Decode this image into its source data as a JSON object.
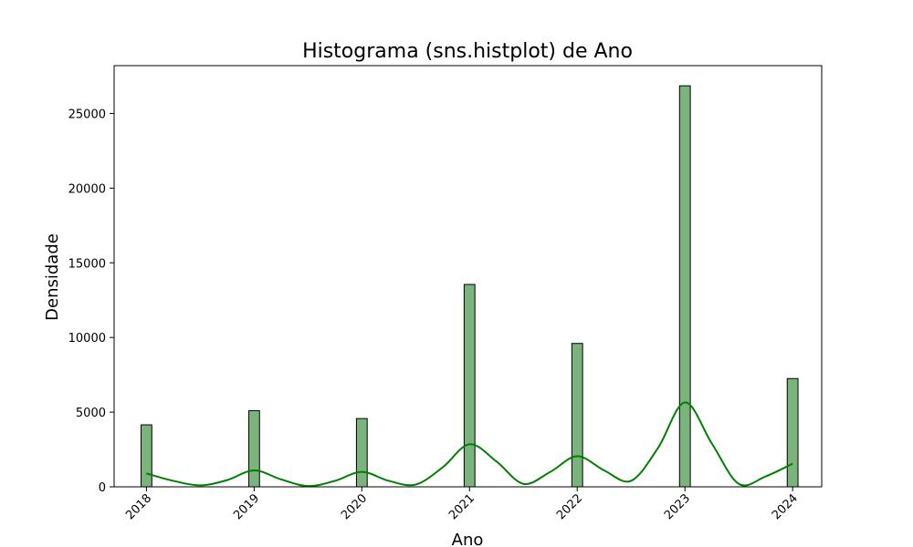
{
  "chart_data": {
    "type": "bar",
    "title": "Histograma (sns.histplot) de Ano",
    "xlabel": "Ano",
    "ylabel": "Densidade",
    "x_ticks": [
      "2018",
      "2019",
      "2020",
      "2021",
      "2022",
      "2023",
      "2024"
    ],
    "y_ticks": [
      0,
      5000,
      10000,
      15000,
      20000,
      25000
    ],
    "ylim": [
      0,
      28200
    ],
    "xlim": [
      2017.7,
      2024.27
    ],
    "bin_width": 0.1,
    "series": [
      {
        "type": "bar",
        "x": [
          2018,
          2019,
          2020,
          2021,
          2022,
          2023,
          2024
        ],
        "values": [
          4150,
          5100,
          4570,
          13550,
          9600,
          26850,
          7250
        ],
        "color": "#7ab37c",
        "edgecolor": "#000000"
      },
      {
        "type": "line",
        "kde": true,
        "color": "#008000",
        "x": [
          2018.0,
          2018.25,
          2018.5,
          2018.75,
          2019.0,
          2019.25,
          2019.5,
          2019.75,
          2020.0,
          2020.25,
          2020.5,
          2020.75,
          2021.0,
          2021.25,
          2021.5,
          2021.75,
          2022.0,
          2022.25,
          2022.5,
          2022.75,
          2023.0,
          2023.25,
          2023.5,
          2023.75,
          2024.0
        ],
        "values": [
          900,
          400,
          100,
          450,
          1100,
          500,
          50,
          400,
          1000,
          400,
          150,
          1300,
          2850,
          1700,
          200,
          1000,
          2050,
          1100,
          400,
          2600,
          5650,
          2900,
          200,
          700,
          1550
        ]
      }
    ]
  }
}
